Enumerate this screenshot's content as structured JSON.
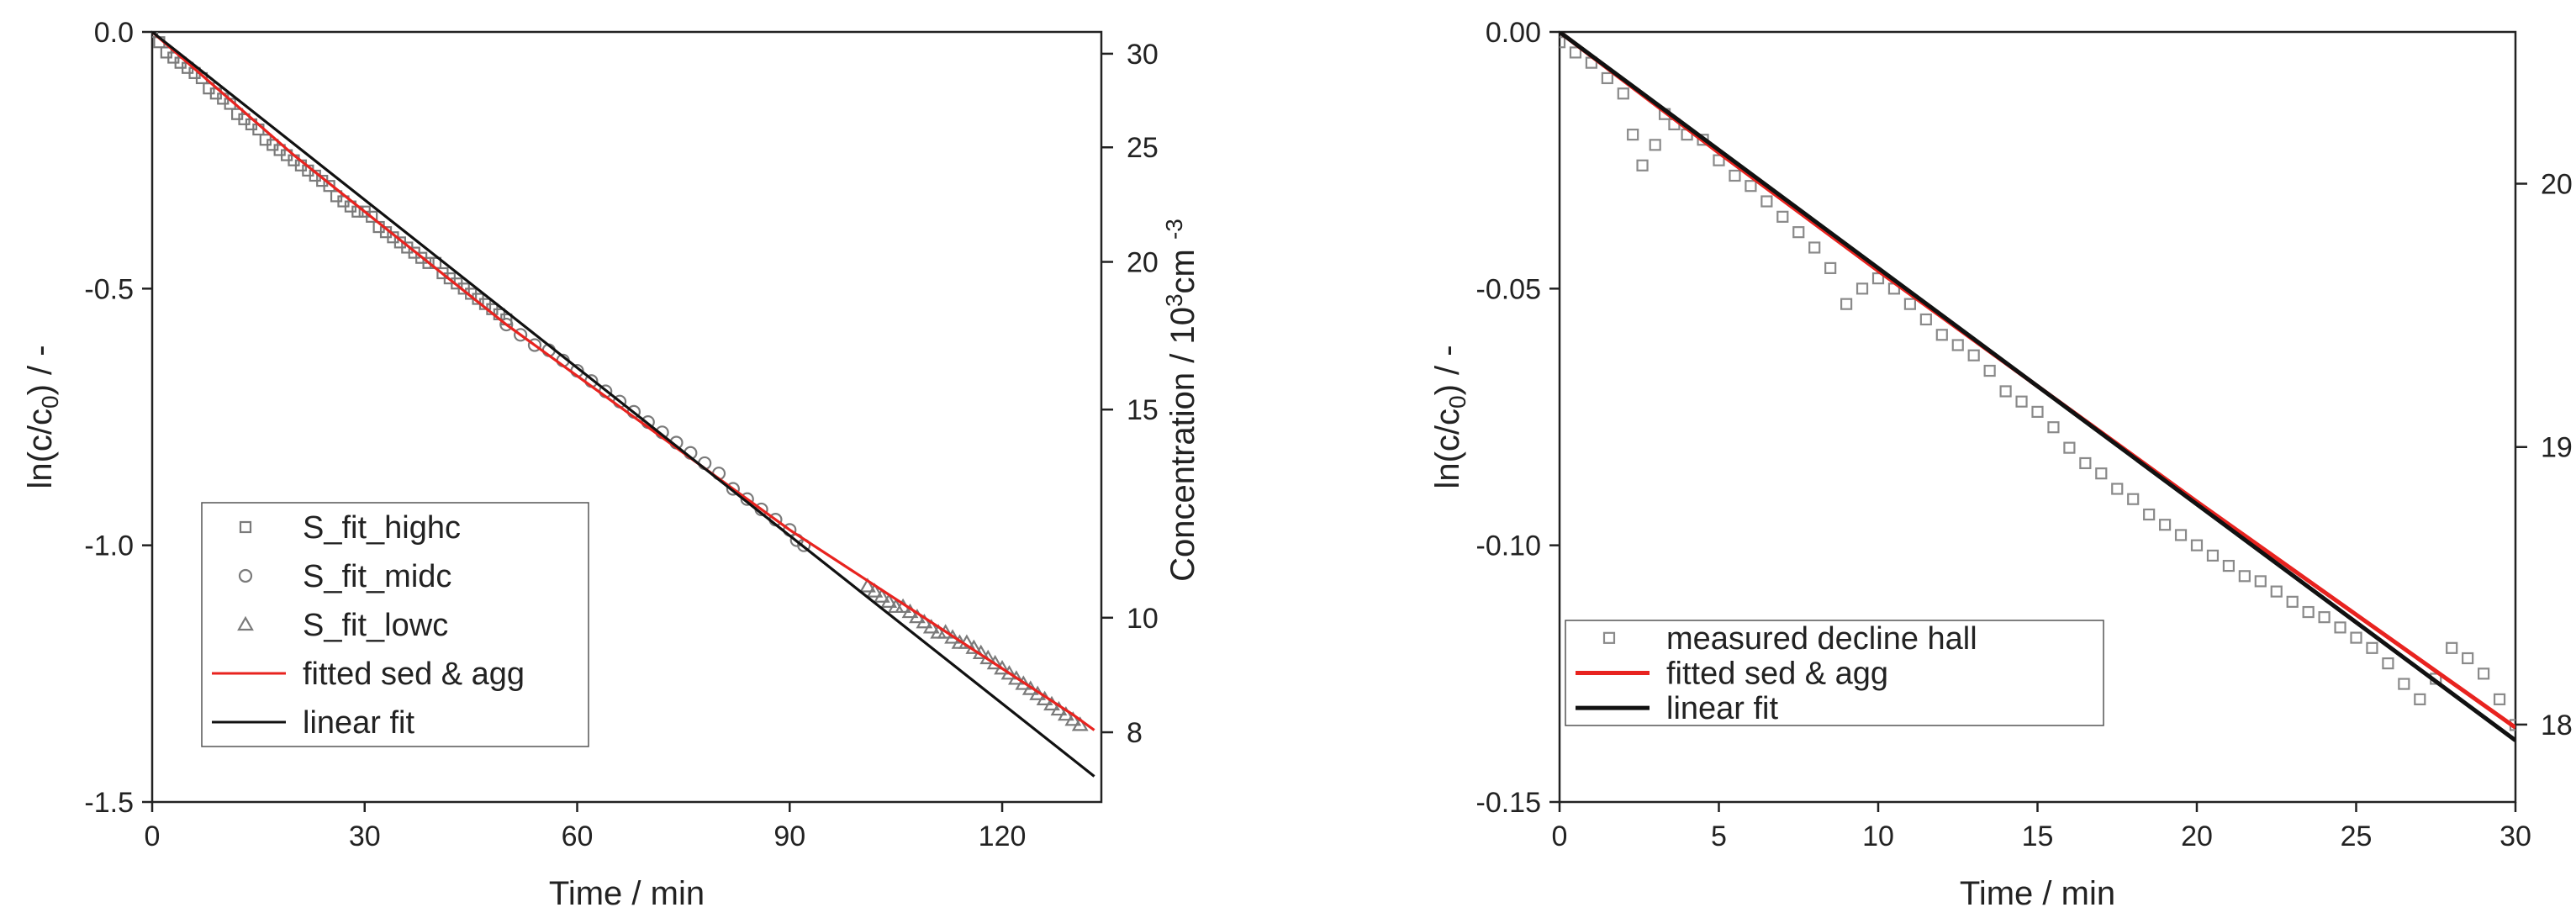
{
  "chart_data": [
    {
      "type": "scatter",
      "title": "",
      "xlabel": "Time / min",
      "ylabel": "ln(c/c0) / -",
      "ylabel_parts": {
        "base": "ln(c/c",
        "sub": "0",
        "tail": ") / -"
      },
      "y2label": "Concentration / 10^3cm^-3",
      "y2label_parts": {
        "pre": "Concentration / 10",
        "sup1": "3",
        "mid": "cm ",
        "sup2": "-3"
      },
      "xlim": [
        0,
        134
      ],
      "ylim": [
        -1.5,
        0.0
      ],
      "x_ticks": [
        0,
        30,
        60,
        90,
        120
      ],
      "x_tick_labels": [
        "0",
        "30",
        "60",
        "90",
        "120"
      ],
      "y_ticks": [
        0.0,
        -0.5,
        -1.0,
        -1.5
      ],
      "y_tick_labels": [
        "0.0",
        "-0.5",
        "-1.0",
        "-1.5"
      ],
      "y2_axis": {
        "c0": 31.3,
        "ticks": [
          30,
          25,
          20,
          15,
          10,
          8
        ],
        "tick_labels": [
          "30",
          "25",
          "20",
          "15",
          "10",
          "8"
        ]
      },
      "legend_position": "bottom-left",
      "series": [
        {
          "name": "S_fit_highc",
          "kind": "marker",
          "marker": "square",
          "color": "#7a7a7a",
          "x": [
            0,
            1,
            2,
            3,
            4,
            5,
            6,
            7,
            8,
            9,
            10,
            11,
            12,
            13,
            14,
            15,
            16,
            17,
            18,
            19,
            20,
            21,
            22,
            23,
            24,
            25,
            26,
            27,
            28,
            29,
            30,
            31,
            32,
            33,
            34,
            35,
            36,
            37,
            38,
            39,
            40,
            41,
            42,
            43,
            44,
            45,
            46,
            47,
            48,
            49,
            50
          ],
          "y": [
            0.0,
            -0.02,
            -0.04,
            -0.05,
            -0.06,
            -0.07,
            -0.08,
            -0.09,
            -0.11,
            -0.12,
            -0.13,
            -0.14,
            -0.16,
            -0.17,
            -0.18,
            -0.19,
            -0.21,
            -0.22,
            -0.23,
            -0.24,
            -0.25,
            -0.26,
            -0.27,
            -0.28,
            -0.29,
            -0.3,
            -0.32,
            -0.33,
            -0.34,
            -0.35,
            -0.35,
            -0.36,
            -0.38,
            -0.39,
            -0.4,
            -0.41,
            -0.42,
            -0.43,
            -0.44,
            -0.45,
            -0.45,
            -0.47,
            -0.48,
            -0.49,
            -0.5,
            -0.51,
            -0.52,
            -0.53,
            -0.54,
            -0.55,
            -0.56
          ]
        },
        {
          "name": "S_fit_midc",
          "kind": "marker",
          "marker": "circle",
          "color": "#7a7a7a",
          "x": [
            50,
            52,
            54,
            56,
            58,
            60,
            62,
            64,
            66,
            68,
            70,
            72,
            74,
            76,
            78,
            80,
            82,
            84,
            86,
            88,
            90,
            91,
            92
          ],
          "y": [
            -0.57,
            -0.59,
            -0.61,
            -0.62,
            -0.64,
            -0.66,
            -0.68,
            -0.7,
            -0.72,
            -0.74,
            -0.76,
            -0.78,
            -0.8,
            -0.82,
            -0.84,
            -0.86,
            -0.89,
            -0.91,
            -0.93,
            -0.95,
            -0.97,
            -0.99,
            -1.0
          ]
        },
        {
          "name": "S_fit_lowc",
          "kind": "marker",
          "marker": "triangle",
          "color": "#7a7a7a",
          "x": [
            101,
            102,
            103,
            104,
            105,
            106,
            107,
            108,
            109,
            110,
            111,
            112,
            113,
            114,
            115,
            116,
            117,
            118,
            119,
            120,
            121,
            122,
            123,
            124,
            125,
            126,
            127,
            128,
            129,
            130,
            131
          ],
          "y": [
            -1.08,
            -1.09,
            -1.1,
            -1.11,
            -1.12,
            -1.12,
            -1.13,
            -1.14,
            -1.15,
            -1.16,
            -1.17,
            -1.17,
            -1.18,
            -1.19,
            -1.19,
            -1.2,
            -1.21,
            -1.22,
            -1.23,
            -1.24,
            -1.25,
            -1.26,
            -1.27,
            -1.28,
            -1.29,
            -1.3,
            -1.31,
            -1.32,
            -1.33,
            -1.34,
            -1.35
          ]
        },
        {
          "name": "fitted sed & agg",
          "kind": "line",
          "color": "#e8231f",
          "x": [
            0,
            10,
            20,
            30,
            40,
            50,
            60,
            70,
            80,
            90,
            100,
            110,
            120,
            130,
            133
          ],
          "y": [
            0.0,
            -0.12,
            -0.24,
            -0.35,
            -0.46,
            -0.57,
            -0.67,
            -0.77,
            -0.87,
            -0.97,
            -1.06,
            -1.15,
            -1.24,
            -1.33,
            -1.36
          ]
        },
        {
          "name": "linear fit",
          "kind": "line",
          "color": "#111111",
          "x": [
            0,
            133
          ],
          "y": [
            0.0,
            -1.45
          ]
        }
      ]
    },
    {
      "type": "scatter",
      "title": "",
      "xlabel": "Time / min",
      "ylabel": "ln(c/c0) / -",
      "ylabel_parts": {
        "base": "ln(c/c",
        "sub": "0",
        "tail": ") / -"
      },
      "y2label": "Concentration / 10^3cm^-3",
      "y2label_parts": {
        "pre": "Concentration / 10",
        "sup1": "3",
        "mid": "cm ",
        "sup2": "-3"
      },
      "xlim": [
        0,
        30
      ],
      "ylim": [
        -0.15,
        0.0
      ],
      "x_ticks": [
        0,
        5,
        10,
        15,
        20,
        25,
        30
      ],
      "x_tick_labels": [
        "0",
        "5",
        "10",
        "15",
        "20",
        "25",
        "30"
      ],
      "y_ticks": [
        0.0,
        -0.05,
        -0.1,
        -0.15
      ],
      "y_tick_labels": [
        "0.00",
        "-0.05",
        "-0.10",
        "-0.15"
      ],
      "y2_axis": {
        "c0": 20.6,
        "ticks": [
          20,
          19,
          18
        ],
        "tick_labels": [
          "20",
          "19",
          "18"
        ]
      },
      "legend_position": "bottom-left",
      "series": [
        {
          "name": "measured decline hall",
          "kind": "marker",
          "marker": "square",
          "color": "#8a8a8a",
          "x": [
            0,
            0.5,
            1,
            1.5,
            2,
            2.3,
            2.6,
            3,
            3.3,
            3.6,
            4,
            4.5,
            5,
            5.5,
            6,
            6.5,
            7,
            7.5,
            8,
            8.5,
            9,
            9.5,
            10,
            10.5,
            11,
            11.5,
            12,
            12.5,
            13,
            13.5,
            14,
            14.5,
            15,
            15.5,
            16,
            16.5,
            17,
            17.5,
            18,
            18.5,
            19,
            19.5,
            20,
            20.5,
            21,
            21.5,
            22,
            22.5,
            23,
            23.5,
            24,
            24.5,
            25,
            25.5,
            26,
            26.5,
            27,
            27.5,
            28,
            28.5,
            29,
            29.5,
            30
          ],
          "y": [
            -0.002,
            -0.004,
            -0.006,
            -0.009,
            -0.012,
            -0.02,
            -0.026,
            -0.022,
            -0.016,
            -0.018,
            -0.02,
            -0.021,
            -0.025,
            -0.028,
            -0.03,
            -0.033,
            -0.036,
            -0.039,
            -0.042,
            -0.046,
            -0.053,
            -0.05,
            -0.048,
            -0.05,
            -0.053,
            -0.056,
            -0.059,
            -0.061,
            -0.063,
            -0.066,
            -0.07,
            -0.072,
            -0.074,
            -0.077,
            -0.081,
            -0.084,
            -0.086,
            -0.089,
            -0.091,
            -0.094,
            -0.096,
            -0.098,
            -0.1,
            -0.102,
            -0.104,
            -0.106,
            -0.107,
            -0.109,
            -0.111,
            -0.113,
            -0.114,
            -0.116,
            -0.118,
            -0.12,
            -0.123,
            -0.127,
            -0.13,
            -0.126,
            -0.12,
            -0.122,
            -0.125,
            -0.13,
            -0.135
          ]
        },
        {
          "name": "fitted sed & agg",
          "kind": "line",
          "color": "#e8231f",
          "x": [
            0,
            5,
            10,
            15,
            20,
            25,
            30
          ],
          "y": [
            0.0,
            -0.0235,
            -0.0465,
            -0.069,
            -0.0915,
            -0.1135,
            -0.1355
          ]
        },
        {
          "name": "linear fit",
          "kind": "line",
          "color": "#111111",
          "x": [
            0,
            30
          ],
          "y": [
            0.0,
            -0.138
          ]
        }
      ]
    }
  ]
}
